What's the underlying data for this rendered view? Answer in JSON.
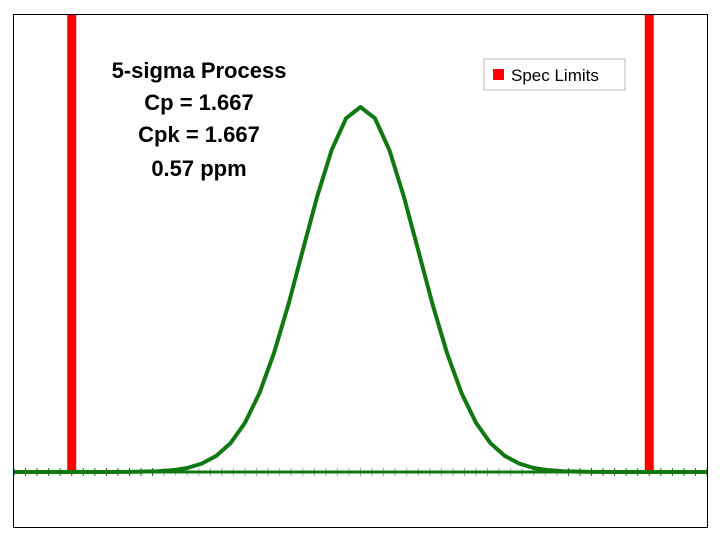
{
  "chart_data": {
    "type": "line",
    "title": "",
    "xlabel": "",
    "ylabel": "",
    "xlim": [
      -6,
      6
    ],
    "ylim": [
      0,
      1
    ],
    "grid": false,
    "legend_position": "top-right",
    "legend": [
      {
        "label": "Spec Limits",
        "color": "#ff0000"
      }
    ],
    "annotations": [
      "5-sigma Process",
      "Cp = 1.667",
      "Cpk = 1.667",
      "0.57 ppm"
    ],
    "spec_limits": {
      "lower": -5,
      "upper": 5,
      "color": "#ff0000"
    },
    "distribution": {
      "mean": 0,
      "sigma": 1,
      "color": "#117711"
    },
    "series": [
      {
        "color": "#117711",
        "x": [
          -6,
          -5.5,
          -5,
          -4.5,
          -4,
          -3.5,
          -3.25,
          -3,
          -2.75,
          -2.5,
          -2.25,
          -2,
          -1.75,
          -1.5,
          -1.25,
          -1,
          -0.75,
          -0.5,
          -0.25,
          0,
          0.25,
          0.5,
          0.75,
          1,
          1.25,
          1.5,
          1.75,
          2,
          2.25,
          2.5,
          2.75,
          3,
          3.25,
          3.5,
          4,
          4.5,
          5,
          5.5,
          6
        ],
        "y": [
          0,
          0,
          0,
          0,
          0.0003,
          0.002,
          0.005,
          0.011,
          0.023,
          0.044,
          0.079,
          0.135,
          0.216,
          0.325,
          0.458,
          0.607,
          0.755,
          0.882,
          0.969,
          1,
          0.969,
          0.882,
          0.755,
          0.607,
          0.458,
          0.325,
          0.216,
          0.135,
          0.079,
          0.044,
          0.023,
          0.011,
          0.005,
          0.002,
          0.0003,
          0,
          0,
          0,
          0
        ]
      }
    ],
    "x_minor_ticks": {
      "start": -6,
      "end": 6,
      "step": 0.2
    }
  }
}
